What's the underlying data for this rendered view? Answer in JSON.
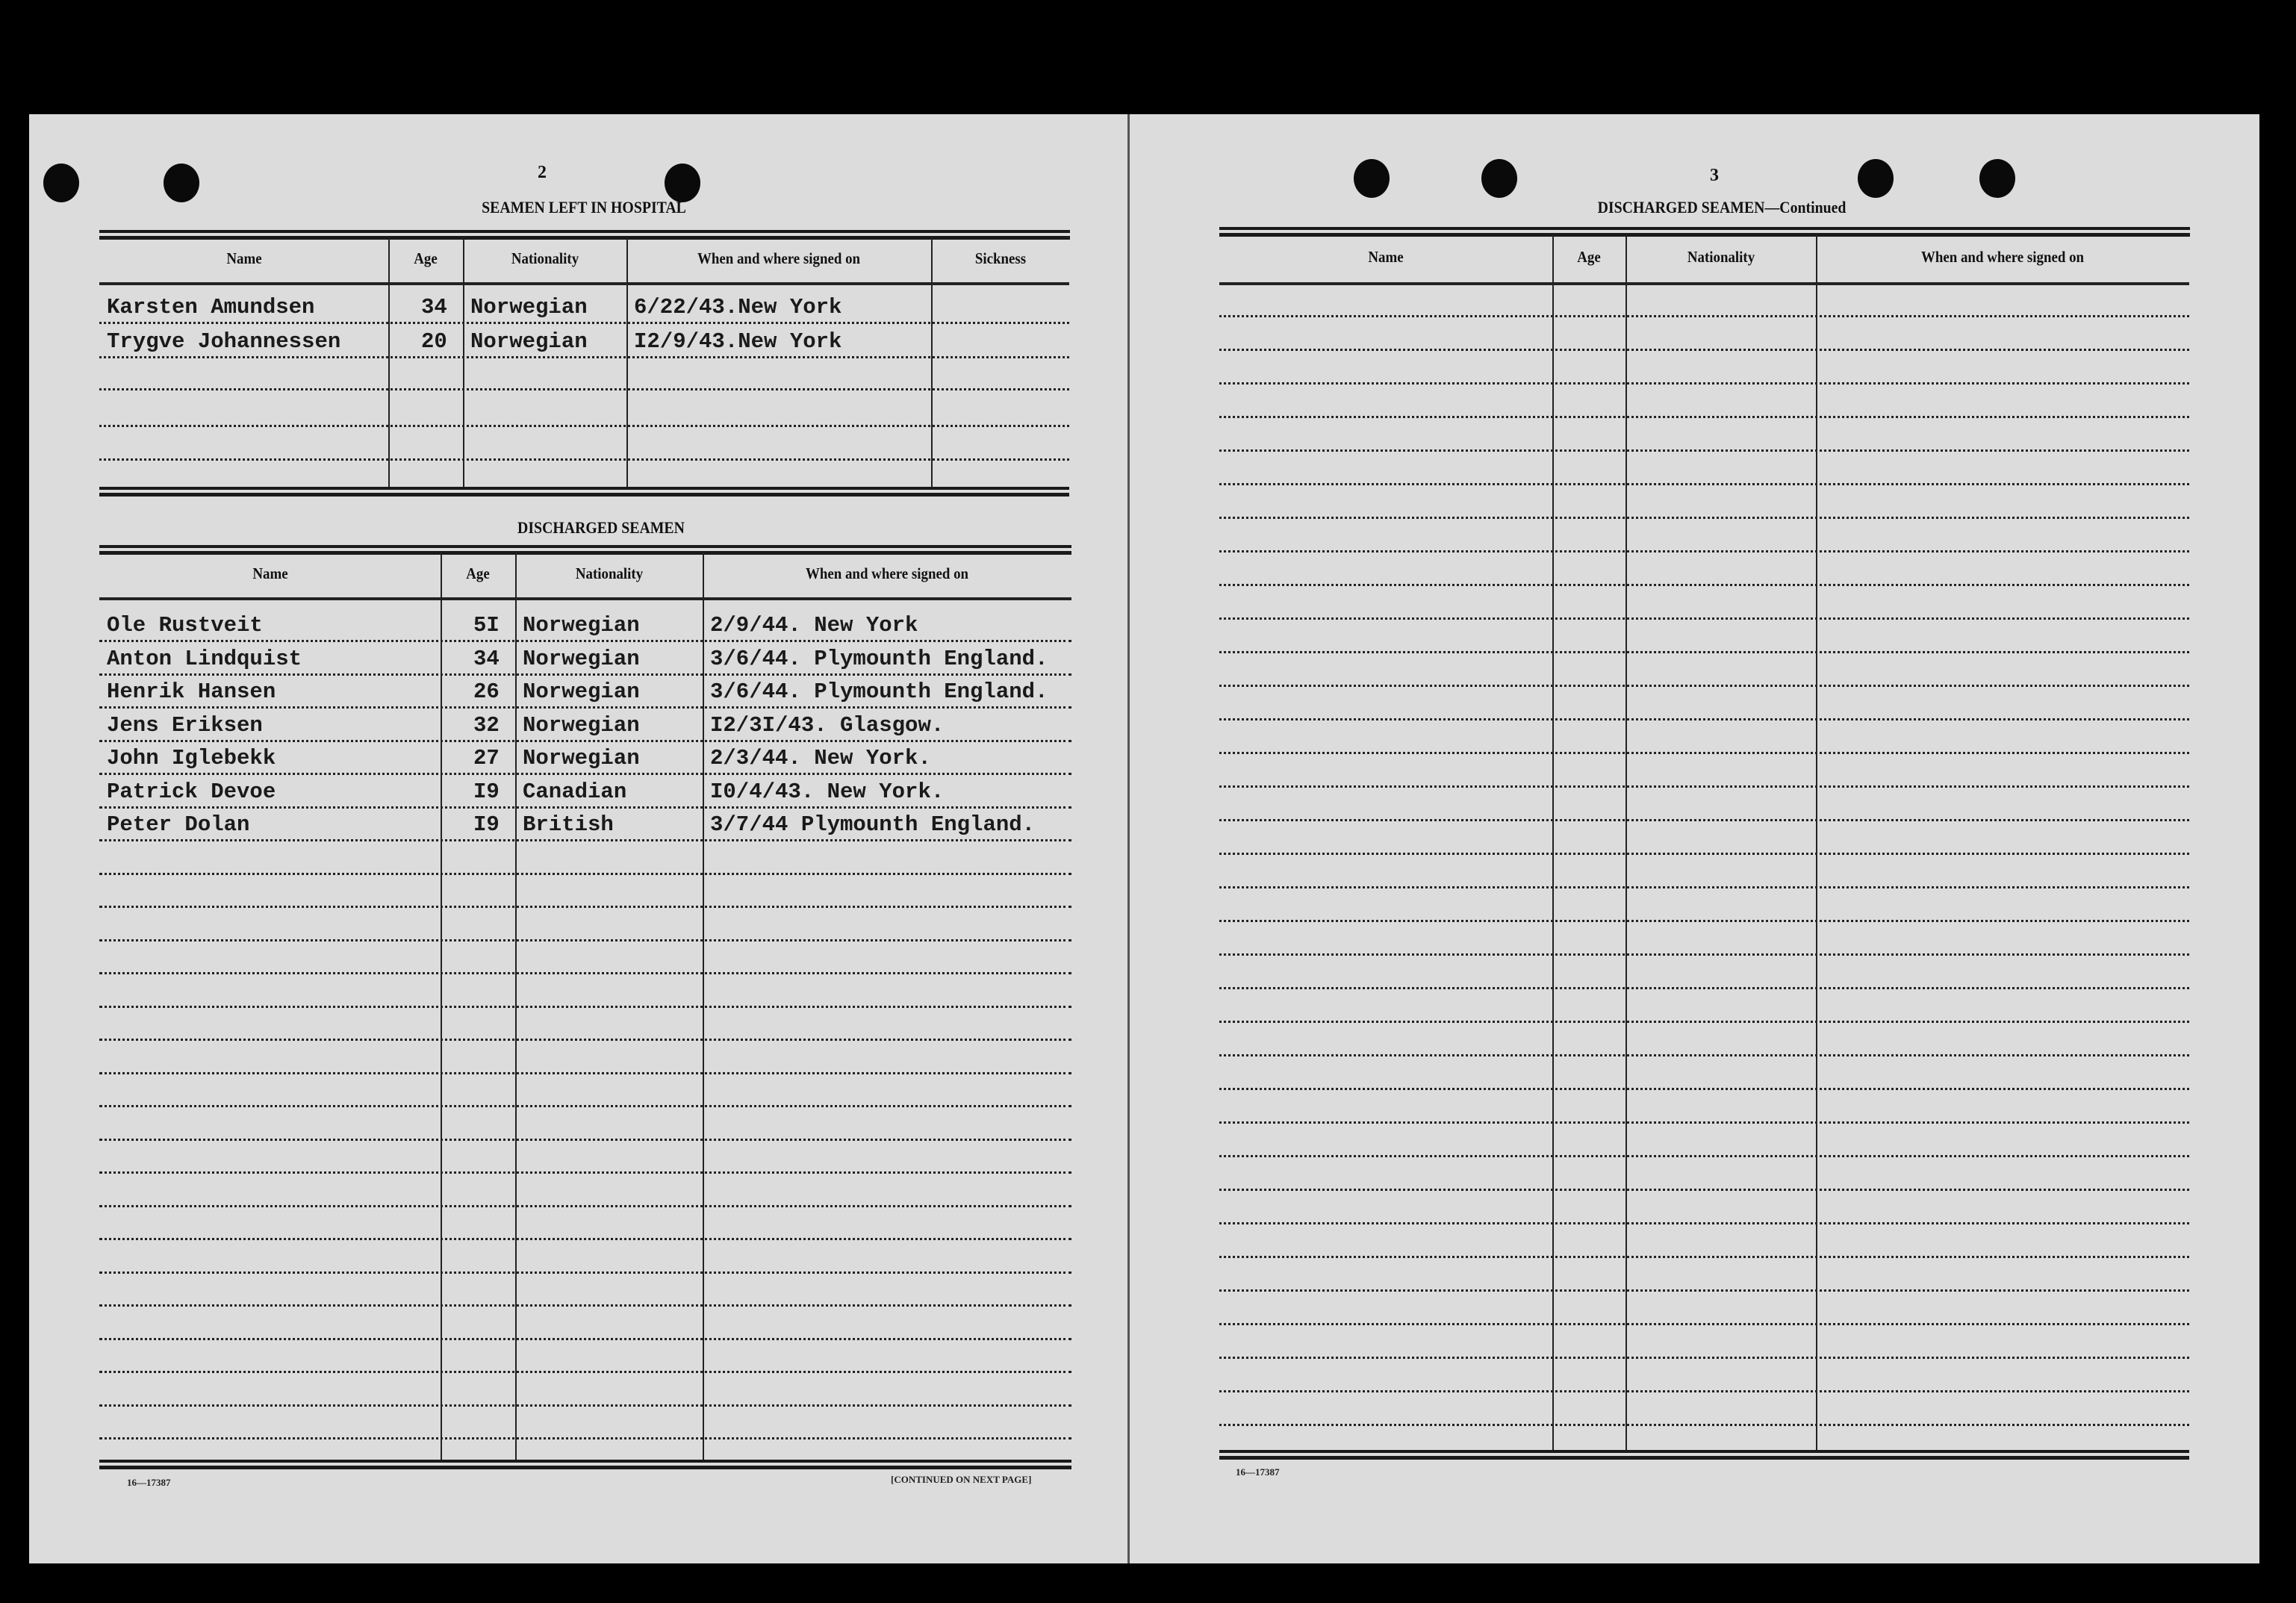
{
  "left_page": {
    "page_number": "2",
    "hospital": {
      "title": "SEAMEN LEFT IN HOSPITAL",
      "headers": [
        "Name",
        "Age",
        "Nationality",
        "When and where signed on",
        "Sickness"
      ],
      "rows": [
        [
          "Karsten Amundsen",
          "34",
          "Norwegian",
          "6/22/43.New York",
          ""
        ],
        [
          "Trygve Johannessen",
          "20",
          "Norwegian",
          "I2/9/43.New York",
          ""
        ]
      ]
    },
    "discharged": {
      "title": "DISCHARGED SEAMEN",
      "headers": [
        "Name",
        "Age",
        "Nationality",
        "When and where signed on"
      ],
      "rows": [
        [
          "Ole Rustveit",
          "5I",
          "Norwegian",
          "2/9/44. New York"
        ],
        [
          "Anton Lindquist",
          "34",
          "Norwegian",
          "3/6/44. Plymounth England."
        ],
        [
          "Henrik Hansen",
          "26",
          "Norwegian",
          "3/6/44. Plymounth England."
        ],
        [
          "Jens Eriksen",
          "32",
          "Norwegian",
          "I2/3I/43. Glasgow."
        ],
        [
          "John Iglebekk",
          "27",
          "Norwegian",
          "2/3/44. New York."
        ],
        [
          "Patrick Devoe",
          "I9",
          "Canadian",
          "I0/4/43. New York."
        ],
        [
          "Peter Dolan",
          "I9",
          "British",
          "3/7/44 Plymounth England."
        ]
      ]
    },
    "form_number": "16—17387",
    "continued_note": "[CONTINUED ON NEXT PAGE]"
  },
  "right_page": {
    "page_number": "3",
    "title": "DISCHARGED SEAMEN—Continued",
    "headers": [
      "Name",
      "Age",
      "Nationality",
      "When and where signed on"
    ],
    "form_number": "16—17387"
  }
}
